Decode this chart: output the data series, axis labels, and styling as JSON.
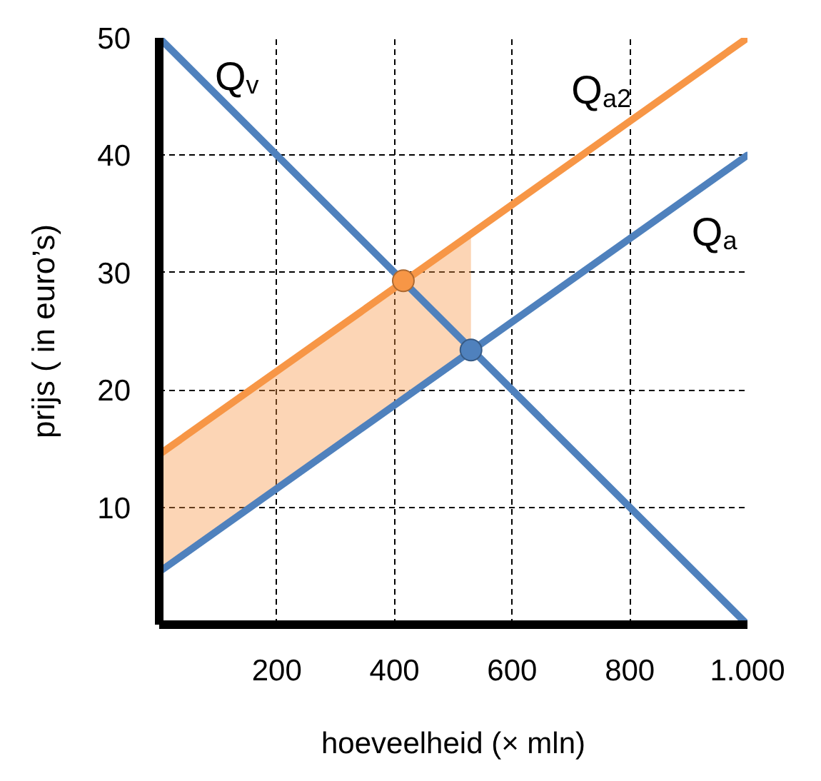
{
  "chart_data": {
    "type": "line",
    "xlabel": "hoeveelheid (× mln)",
    "ylabel": "prijs ( in euro’s)",
    "xlim": [
      0,
      1000
    ],
    "ylim": [
      0,
      50
    ],
    "xticks": [
      200,
      400,
      600,
      800,
      {
        "value": 1000,
        "label": "1.000"
      }
    ],
    "yticks": [
      10,
      20,
      30,
      40,
      50
    ],
    "grid": true,
    "line_style": "solid",
    "series": [
      {
        "name": "Q$_{v}$",
        "color": "#4f81bd",
        "x": [
          0,
          1000
        ],
        "values": [
          50,
          0
        ]
      },
      {
        "name": "Q$_{a2}$",
        "color": "#f79646",
        "x": [
          0,
          530,
          1000
        ],
        "values": [
          14.5,
          33.3,
          50
        ],
        "lower": [
          4.5,
          23.3,
          null
        ],
        "upper": [
          14.5,
          33.3,
          null
        ]
      },
      {
        "name": "Q$_{a}$",
        "color": "#4f81bd",
        "x": [
          0,
          1000
        ],
        "values": [
          4.5,
          40
        ]
      },
      {
        "type": "scatter",
        "marker": "circle",
        "color": "#f79646",
        "x": [
          415
        ],
        "values": [
          29.3
        ]
      },
      {
        "type": "scatter",
        "marker": "circle",
        "color": "#4f81bd",
        "x": [
          530
        ],
        "values": [
          23.4
        ]
      }
    ]
  }
}
